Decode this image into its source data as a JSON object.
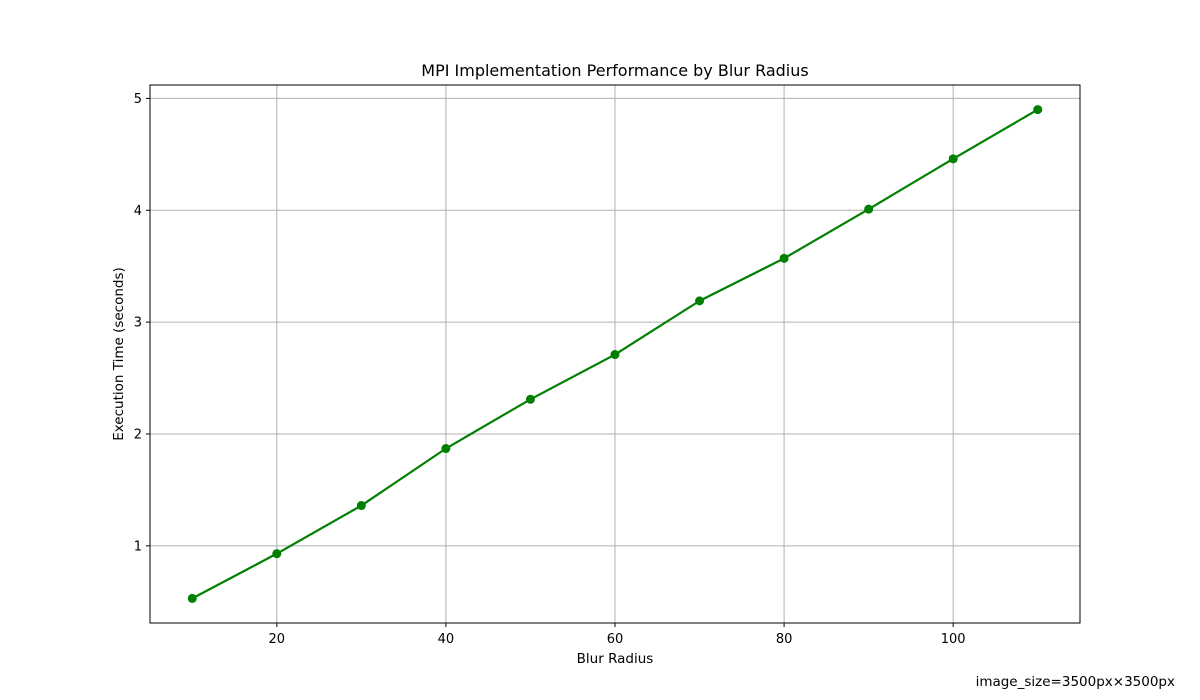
{
  "chart_data": {
    "type": "line",
    "title": "MPI Implementation Performance by Blur Radius",
    "xlabel": "Blur Radius",
    "ylabel": "Execution Time (seconds)",
    "x": [
      10,
      20,
      30,
      40,
      50,
      60,
      70,
      80,
      90,
      100,
      110
    ],
    "series": [
      {
        "values": [
          0.53,
          0.93,
          1.36,
          1.87,
          2.31,
          2.71,
          3.19,
          3.57,
          4.01,
          4.46,
          4.9
        ],
        "color": "#008000",
        "marker": "circle"
      }
    ],
    "xlim": [
      5,
      115
    ],
    "ylim": [
      0.31,
      5.12
    ],
    "xticks": [
      20,
      40,
      60,
      80,
      100
    ],
    "yticks": [
      1,
      2,
      3,
      4,
      5
    ],
    "grid": true,
    "legend": "none"
  },
  "footer": {
    "note": "image_size=3500px×3500px"
  }
}
